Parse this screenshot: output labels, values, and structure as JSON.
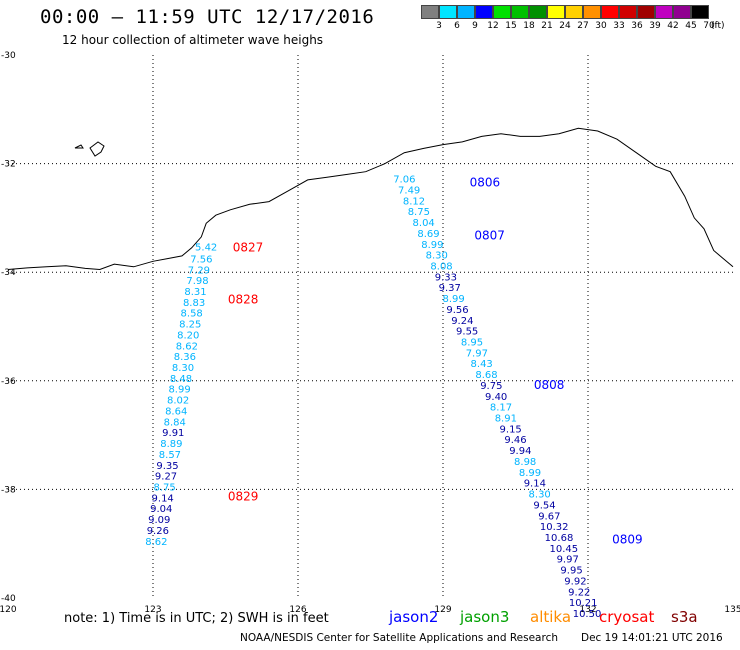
{
  "header": {
    "title": "00:00 – 11:59 UTC 12/17/2016",
    "subtitle": "12 hour collection of altimeter wave heighs"
  },
  "legend": {
    "colorbar": [
      {
        "label": "3",
        "color": "#808080"
      },
      {
        "label": "6",
        "color": "#00e5ff"
      },
      {
        "label": "9",
        "color": "#00b4ff"
      },
      {
        "label": "12",
        "color": "#0000ff"
      },
      {
        "label": "15",
        "color": "#00e000"
      },
      {
        "label": "18",
        "color": "#00c000"
      },
      {
        "label": "21",
        "color": "#009000"
      },
      {
        "label": "24",
        "color": "#ffff00"
      },
      {
        "label": "27",
        "color": "#ffd000"
      },
      {
        "label": "30",
        "color": "#ff9000"
      },
      {
        "label": "33",
        "color": "#ff0000"
      },
      {
        "label": "36",
        "color": "#d00000"
      },
      {
        "label": "39",
        "color": "#a00000"
      },
      {
        "label": "42",
        "color": "#c000c0"
      },
      {
        "label": "45",
        "color": "#900090"
      },
      {
        "label": "70",
        "color": "#000000"
      }
    ],
    "unit": "(ft)"
  },
  "footer": {
    "note": "note: 1) Time is in UTC; 2) SWH is in feet",
    "credit": "NOAA/NESDIS Center for Satellite Applications and Research",
    "timestamp": "Dec 19 14:01:21 UTC 2016",
    "satellites": [
      {
        "name": "jason2",
        "color": "#0000ff"
      },
      {
        "name": "jason3",
        "color": "#00a000"
      },
      {
        "name": "altika",
        "color": "#ff8c00"
      },
      {
        "name": "cryosat",
        "color": "#ff0000"
      },
      {
        "name": "s3a",
        "color": "#800000"
      }
    ]
  },
  "chart_data": {
    "type": "scatter",
    "title": "00:00 – 11:59 UTC 12/17/2016",
    "subtitle": "12 hour collection of altimeter wave heighs",
    "xlabel": "",
    "ylabel": "",
    "xlim": [
      120,
      135
    ],
    "ylim": [
      -40,
      -30
    ],
    "x_ticks": [
      "120",
      "123",
      "126",
      "129",
      "132",
      "135"
    ],
    "y_ticks": [
      "-30",
      "-32",
      "-34",
      "-36",
      "-38",
      "-40"
    ],
    "grid": true,
    "coastline": [
      [
        120.0,
        -33.95
      ],
      [
        120.4,
        -33.92
      ],
      [
        120.8,
        -33.9
      ],
      [
        121.2,
        -33.88
      ],
      [
        121.6,
        -33.93
      ],
      [
        121.9,
        -33.95
      ],
      [
        122.2,
        -33.85
      ],
      [
        122.6,
        -33.9
      ],
      [
        123.0,
        -33.8
      ],
      [
        123.3,
        -33.75
      ],
      [
        123.6,
        -33.7
      ],
      [
        123.8,
        -33.55
      ],
      [
        124.0,
        -33.35
      ],
      [
        124.1,
        -33.1
      ],
      [
        124.3,
        -32.95
      ],
      [
        124.6,
        -32.85
      ],
      [
        125.0,
        -32.75
      ],
      [
        125.4,
        -32.7
      ],
      [
        125.8,
        -32.5
      ],
      [
        126.2,
        -32.3
      ],
      [
        126.6,
        -32.25
      ],
      [
        127.0,
        -32.2
      ],
      [
        127.4,
        -32.15
      ],
      [
        127.8,
        -32.0
      ],
      [
        128.2,
        -31.8
      ],
      [
        128.6,
        -31.72
      ],
      [
        129.0,
        -31.65
      ],
      [
        129.4,
        -31.6
      ],
      [
        129.8,
        -31.5
      ],
      [
        130.2,
        -31.45
      ],
      [
        130.6,
        -31.5
      ],
      [
        131.0,
        -31.5
      ],
      [
        131.4,
        -31.45
      ],
      [
        131.8,
        -31.35
      ],
      [
        132.2,
        -31.4
      ],
      [
        132.6,
        -31.55
      ],
      [
        133.0,
        -31.8
      ],
      [
        133.4,
        -32.05
      ],
      [
        133.7,
        -32.15
      ],
      [
        134.0,
        -32.6
      ],
      [
        134.2,
        -33.0
      ],
      [
        134.4,
        -33.2
      ],
      [
        134.6,
        -33.6
      ],
      [
        134.8,
        -33.75
      ],
      [
        135.0,
        -33.9
      ]
    ],
    "passes": [
      {
        "times": [
          {
            "label": "0827",
            "lon": 124.65,
            "lat": -33.62
          },
          {
            "label": "0828",
            "lon": 124.55,
            "lat": -34.58
          },
          {
            "label": "0829",
            "lon": 124.55,
            "lat": -38.2
          }
        ],
        "points": [
          {
            "lon": 124.1,
            "lat": -33.6,
            "swh": "5.42"
          },
          {
            "lon": 124.0,
            "lat": -33.82,
            "swh": "7.56"
          },
          {
            "lon": 123.95,
            "lat": -34.02,
            "swh": "7.29"
          },
          {
            "lon": 123.92,
            "lat": -34.22,
            "swh": "7.98"
          },
          {
            "lon": 123.88,
            "lat": -34.42,
            "swh": "8.31"
          },
          {
            "lon": 123.85,
            "lat": -34.62,
            "swh": "8.83"
          },
          {
            "lon": 123.8,
            "lat": -34.82,
            "swh": "8.58"
          },
          {
            "lon": 123.77,
            "lat": -35.02,
            "swh": "8.25"
          },
          {
            "lon": 123.73,
            "lat": -35.22,
            "swh": "8.20"
          },
          {
            "lon": 123.7,
            "lat": -35.42,
            "swh": "8.62"
          },
          {
            "lon": 123.66,
            "lat": -35.62,
            "swh": "8.36"
          },
          {
            "lon": 123.62,
            "lat": -35.82,
            "swh": "8.30"
          },
          {
            "lon": 123.58,
            "lat": -36.02,
            "swh": "8.48"
          },
          {
            "lon": 123.55,
            "lat": -36.22,
            "swh": "8.99"
          },
          {
            "lon": 123.52,
            "lat": -36.42,
            "swh": "8.02"
          },
          {
            "lon": 123.48,
            "lat": -36.62,
            "swh": "8.64"
          },
          {
            "lon": 123.45,
            "lat": -36.82,
            "swh": "8.84"
          },
          {
            "lon": 123.42,
            "lat": -37.02,
            "swh": "9.91"
          },
          {
            "lon": 123.38,
            "lat": -37.22,
            "swh": "8.89"
          },
          {
            "lon": 123.35,
            "lat": -37.42,
            "swh": "8.57"
          },
          {
            "lon": 123.3,
            "lat": -37.62,
            "swh": "9.35"
          },
          {
            "lon": 123.27,
            "lat": -37.82,
            "swh": "9.27"
          },
          {
            "lon": 123.24,
            "lat": -38.02,
            "swh": "8.75"
          },
          {
            "lon": 123.2,
            "lat": -38.22,
            "swh": "9.14"
          },
          {
            "lon": 123.17,
            "lat": -38.42,
            "swh": "9.04"
          },
          {
            "lon": 123.13,
            "lat": -38.62,
            "swh": "9.09"
          },
          {
            "lon": 123.1,
            "lat": -38.82,
            "swh": "9.26"
          },
          {
            "lon": 123.07,
            "lat": -39.02,
            "swh": "8.62"
          }
        ]
      },
      {
        "times": [
          {
            "label": "0806",
            "lon": 129.55,
            "lat": -32.42
          },
          {
            "label": "0807",
            "lon": 129.65,
            "lat": -33.4
          },
          {
            "label": "0808",
            "lon": 130.88,
            "lat": -36.15
          },
          {
            "label": "0809",
            "lon": 132.5,
            "lat": -39.0
          }
        ],
        "points": [
          {
            "lon": 128.2,
            "lat": -32.35,
            "swh": "7.06"
          },
          {
            "lon": 128.3,
            "lat": -32.55,
            "swh": "7.49"
          },
          {
            "lon": 128.4,
            "lat": -32.75,
            "swh": "8.12"
          },
          {
            "lon": 128.5,
            "lat": -32.95,
            "swh": "8.75"
          },
          {
            "lon": 128.6,
            "lat": -33.15,
            "swh": "8.04"
          },
          {
            "lon": 128.7,
            "lat": -33.35,
            "swh": "8.69"
          },
          {
            "lon": 128.78,
            "lat": -33.55,
            "swh": "8.99"
          },
          {
            "lon": 128.87,
            "lat": -33.75,
            "swh": "8.30"
          },
          {
            "lon": 128.97,
            "lat": -33.95,
            "swh": "8.08"
          },
          {
            "lon": 129.06,
            "lat": -34.15,
            "swh": "9.33"
          },
          {
            "lon": 129.14,
            "lat": -34.35,
            "swh": "9.37"
          },
          {
            "lon": 129.22,
            "lat": -34.55,
            "swh": "8.99"
          },
          {
            "lon": 129.3,
            "lat": -34.75,
            "swh": "9.56"
          },
          {
            "lon": 129.4,
            "lat": -34.95,
            "swh": "9.24"
          },
          {
            "lon": 129.5,
            "lat": -35.15,
            "swh": "9.55"
          },
          {
            "lon": 129.6,
            "lat": -35.35,
            "swh": "8.95"
          },
          {
            "lon": 129.7,
            "lat": -35.55,
            "swh": "7.97"
          },
          {
            "lon": 129.8,
            "lat": -35.75,
            "swh": "8.43"
          },
          {
            "lon": 129.9,
            "lat": -35.95,
            "swh": "8.68"
          },
          {
            "lon": 130.0,
            "lat": -36.15,
            "swh": "9.75"
          },
          {
            "lon": 130.1,
            "lat": -36.35,
            "swh": "9.40"
          },
          {
            "lon": 130.2,
            "lat": -36.55,
            "swh": "8.17"
          },
          {
            "lon": 130.3,
            "lat": -36.75,
            "swh": "8.91"
          },
          {
            "lon": 130.4,
            "lat": -36.95,
            "swh": "9.15"
          },
          {
            "lon": 130.5,
            "lat": -37.15,
            "swh": "9.46"
          },
          {
            "lon": 130.6,
            "lat": -37.35,
            "swh": "9.94"
          },
          {
            "lon": 130.7,
            "lat": -37.55,
            "swh": "8.98"
          },
          {
            "lon": 130.8,
            "lat": -37.75,
            "swh": "8.99"
          },
          {
            "lon": 130.9,
            "lat": -37.95,
            "swh": "9.14"
          },
          {
            "lon": 131.0,
            "lat": -38.15,
            "swh": "8.30"
          },
          {
            "lon": 131.1,
            "lat": -38.35,
            "swh": "9.54"
          },
          {
            "lon": 131.2,
            "lat": -38.55,
            "swh": "9.67"
          },
          {
            "lon": 131.3,
            "lat": -38.75,
            "swh": "10.32"
          },
          {
            "lon": 131.4,
            "lat": -38.95,
            "swh": "10.68"
          },
          {
            "lon": 131.5,
            "lat": -39.15,
            "swh": "10.45"
          },
          {
            "lon": 131.58,
            "lat": -39.35,
            "swh": "9.97"
          },
          {
            "lon": 131.66,
            "lat": -39.55,
            "swh": "9.95"
          },
          {
            "lon": 131.74,
            "lat": -39.75,
            "swh": "9.92"
          },
          {
            "lon": 131.82,
            "lat": -39.95,
            "swh": "9.22"
          },
          {
            "lon": 131.9,
            "lat": -40.15,
            "swh": "10.21"
          },
          {
            "lon": 131.98,
            "lat": -40.35,
            "swh": "10.50"
          }
        ]
      }
    ],
    "colors": {
      "time_label": "#ff0000",
      "time_label_jason": "#0000ff",
      "swh_low": "#00b4ff",
      "swh_high": "#0000a0",
      "coast": "#000000",
      "grid": "#000000"
    }
  }
}
